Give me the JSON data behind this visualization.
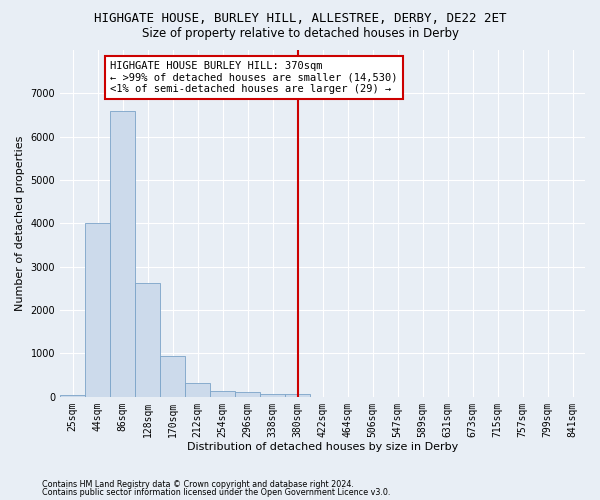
{
  "title": "HIGHGATE HOUSE, BURLEY HILL, ALLESTREE, DERBY, DE22 2ET",
  "subtitle": "Size of property relative to detached houses in Derby",
  "xlabel": "Distribution of detached houses by size in Derby",
  "ylabel": "Number of detached properties",
  "bin_labels": [
    "25sqm",
    "44sqm",
    "86sqm",
    "128sqm",
    "170sqm",
    "212sqm",
    "254sqm",
    "296sqm",
    "338sqm",
    "380sqm",
    "422sqm",
    "464sqm",
    "506sqm",
    "547sqm",
    "589sqm",
    "631sqm",
    "673sqm",
    "715sqm",
    "757sqm",
    "799sqm",
    "841sqm"
  ],
  "bar_values": [
    50,
    4000,
    6600,
    2620,
    950,
    320,
    130,
    115,
    60,
    55,
    0,
    0,
    0,
    0,
    0,
    0,
    0,
    0,
    0,
    0,
    0
  ],
  "bar_color": "#ccdaeb",
  "bar_edge_color": "#7ba3c8",
  "vline_x_index": 9,
  "vline_color": "#cc0000",
  "annotation_line1": "HIGHGATE HOUSE BURLEY HILL: 370sqm",
  "annotation_line2": "← >99% of detached houses are smaller (14,530)",
  "annotation_line3": "<1% of semi-detached houses are larger (29) →",
  "annotation_box_edgecolor": "#cc0000",
  "ylim_max": 8000,
  "yticks": [
    0,
    1000,
    2000,
    3000,
    4000,
    5000,
    6000,
    7000
  ],
  "footer1": "Contains HM Land Registry data © Crown copyright and database right 2024.",
  "footer2": "Contains public sector information licensed under the Open Government Licence v3.0.",
  "bg_color": "#e8eef5",
  "title_fontsize": 9,
  "subtitle_fontsize": 8.5,
  "axis_label_fontsize": 8,
  "tick_fontsize": 7,
  "annotation_fontsize": 7.5,
  "footer_fontsize": 5.8
}
